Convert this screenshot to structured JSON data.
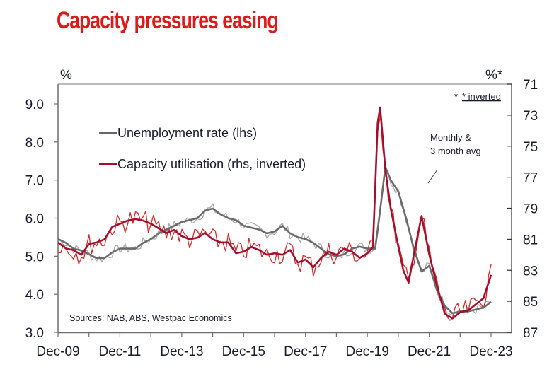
{
  "title": "Capacity pressures easing",
  "chart_data": {
    "type": "line",
    "title": "Capacity pressures easing",
    "left_axis": {
      "label": "%",
      "ylim": [
        3.0,
        9.5
      ],
      "ticks": [
        3.0,
        4.0,
        5.0,
        6.0,
        7.0,
        8.0,
        9.0
      ],
      "tick_labels": [
        "3.0",
        "4.0",
        "5.0",
        "6.0",
        "7.0",
        "8.0",
        "9.0"
      ]
    },
    "right_axis": {
      "label": "%*",
      "ylim": [
        71,
        87
      ],
      "inverted": true,
      "ticks": [
        71,
        73,
        75,
        77,
        79,
        81,
        83,
        85,
        87
      ],
      "tick_labels": [
        "71",
        "73",
        "75",
        "77",
        "79",
        "81",
        "83",
        "85",
        "87"
      ]
    },
    "x_axis": {
      "range": [
        2009.917,
        2024.583
      ],
      "tick_labels": [
        "Dec-09",
        "Dec-11",
        "Dec-13",
        "Dec-15",
        "Dec-17",
        "Dec-19",
        "Dec-21",
        "Dec-23"
      ],
      "minor_tick_years": [
        2009.917,
        2010.917,
        2011.917,
        2012.917,
        2013.917,
        2014.917,
        2015.917,
        2016.917,
        2017.917,
        2018.917,
        2019.917,
        2020.917,
        2021.917,
        2022.917,
        2023.917
      ]
    },
    "legend": [
      {
        "name": "Unemployment rate (lhs)",
        "color": "#666666"
      },
      {
        "name": "Capacity utilisation (rhs, inverted)",
        "color": "#a50f2d"
      }
    ],
    "legend_position": "top-left",
    "annotations": [
      "* inverted",
      "Monthly &",
      "3 month avg",
      "Sources: NAB, ABS, Westpac Economics"
    ],
    "grid": false,
    "series": [
      {
        "name": "Unemployment rate (lhs)",
        "axis": "left",
        "kind": "3mma",
        "color": "#6b6b6b",
        "x": [
          2009.92,
          2010.17,
          2010.42,
          2010.67,
          2010.92,
          2011.17,
          2011.42,
          2011.67,
          2011.92,
          2012.17,
          2012.42,
          2012.67,
          2012.92,
          2013.17,
          2013.42,
          2013.67,
          2013.92,
          2014.17,
          2014.42,
          2014.67,
          2014.92,
          2015.17,
          2015.42,
          2015.67,
          2015.92,
          2016.17,
          2016.42,
          2016.67,
          2016.92,
          2017.17,
          2017.42,
          2017.67,
          2017.92,
          2018.17,
          2018.42,
          2018.67,
          2018.92,
          2019.17,
          2019.42,
          2019.67,
          2019.92,
          2020.17,
          2020.33,
          2020.5,
          2020.67,
          2020.92,
          2021.17,
          2021.42,
          2021.67,
          2021.92,
          2022.17,
          2022.42,
          2022.67,
          2022.92,
          2023.17,
          2023.42,
          2023.67,
          2023.92
        ],
        "values": [
          5.45,
          5.35,
          5.2,
          5.15,
          5.05,
          4.95,
          4.95,
          5.1,
          5.2,
          5.2,
          5.2,
          5.35,
          5.45,
          5.6,
          5.7,
          5.8,
          5.9,
          5.95,
          6.0,
          6.2,
          6.25,
          6.1,
          6.0,
          5.95,
          5.8,
          5.75,
          5.7,
          5.6,
          5.65,
          5.8,
          5.6,
          5.5,
          5.45,
          5.35,
          5.2,
          5.05,
          5.0,
          5.05,
          5.2,
          5.25,
          5.2,
          5.2,
          6.2,
          7.35,
          7.0,
          6.7,
          6.0,
          5.2,
          4.6,
          4.75,
          4.1,
          3.7,
          3.5,
          3.55,
          3.55,
          3.6,
          3.65,
          3.8
        ]
      },
      {
        "name": "Capacity utilisation (rhs, inverted)",
        "axis": "right",
        "kind": "3mma",
        "color": "#a50f2d",
        "x": [
          2009.92,
          2010.17,
          2010.42,
          2010.67,
          2010.92,
          2011.17,
          2011.42,
          2011.67,
          2011.92,
          2012.17,
          2012.42,
          2012.67,
          2012.92,
          2013.17,
          2013.42,
          2013.67,
          2013.92,
          2014.17,
          2014.42,
          2014.67,
          2014.92,
          2015.17,
          2015.42,
          2015.67,
          2015.92,
          2016.17,
          2016.42,
          2016.67,
          2016.92,
          2017.17,
          2017.42,
          2017.67,
          2017.92,
          2018.17,
          2018.42,
          2018.67,
          2018.92,
          2019.17,
          2019.42,
          2019.67,
          2019.92,
          2020.1,
          2020.25,
          2020.33,
          2020.5,
          2020.67,
          2020.92,
          2021.08,
          2021.25,
          2021.42,
          2021.67,
          2021.92,
          2022.17,
          2022.42,
          2022.67,
          2022.92,
          2023.17,
          2023.42,
          2023.67,
          2023.92
        ],
        "values": [
          81.2,
          81.6,
          81.7,
          82.0,
          81.3,
          81.2,
          81.0,
          80.2,
          80.0,
          79.8,
          79.7,
          79.8,
          80.0,
          80.3,
          80.6,
          80.4,
          80.8,
          81.0,
          80.9,
          80.6,
          81.0,
          81.2,
          81.2,
          81.9,
          81.8,
          81.5,
          81.7,
          82.0,
          81.9,
          82.0,
          81.7,
          82.5,
          82.3,
          82.8,
          82.2,
          81.8,
          82.0,
          81.6,
          81.8,
          82.2,
          81.9,
          81.5,
          73.5,
          72.5,
          76.5,
          79.0,
          81.5,
          83.0,
          83.8,
          82.0,
          79.5,
          82.0,
          84.0,
          85.8,
          86.1,
          85.7,
          85.6,
          85.2,
          84.8,
          83.3
        ]
      }
    ]
  }
}
